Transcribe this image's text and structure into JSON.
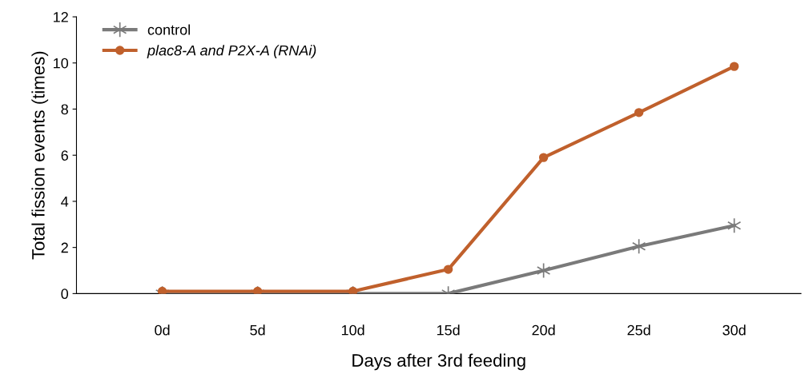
{
  "chart_data": {
    "type": "line",
    "xlabel": "Days after 3rd feeding",
    "ylabel": "Total fission events (times)",
    "categories": [
      "0d",
      "5d",
      "10d",
      "15d",
      "20d",
      "25d",
      "30d"
    ],
    "series": [
      {
        "name": "control",
        "color": "#7a7a7a",
        "marker": "cross",
        "values": [
          0,
          0,
          0,
          0,
          1.0,
          2.05,
          2.95
        ]
      },
      {
        "name": "plac8-A and P2X-A (RNAi)",
        "color": "#c0602c",
        "marker": "circle",
        "values": [
          0.1,
          0.1,
          0.1,
          1.05,
          5.9,
          7.85,
          9.85
        ]
      }
    ],
    "ylim": [
      0,
      12
    ],
    "yticks": [
      0,
      2,
      4,
      6,
      8,
      10,
      12
    ],
    "grid": false,
    "legend": "top left",
    "line_style": "solid"
  }
}
